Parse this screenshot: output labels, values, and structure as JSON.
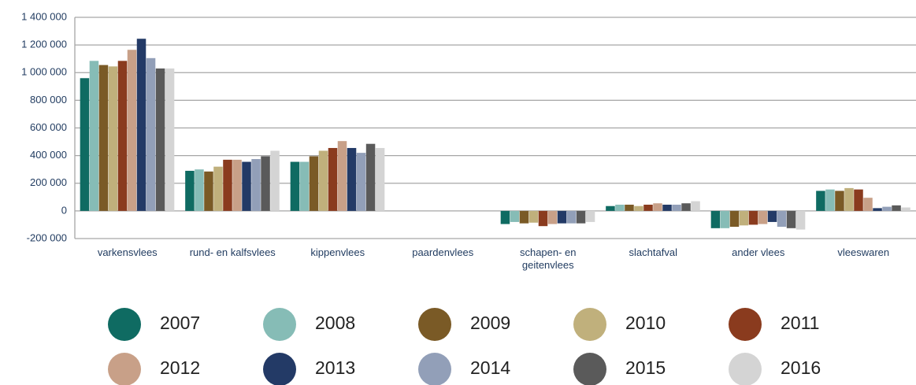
{
  "chart_data": {
    "type": "bar",
    "categories": [
      "varkensvlees",
      "rund- en kalfsvlees",
      "kippenvlees",
      "paardenvlees",
      "schapen- en geitenvlees",
      "slachtafval",
      "ander vlees",
      "vleeswaren"
    ],
    "series": [
      {
        "name": "2007",
        "color": "#0f6b62",
        "values": [
          960000,
          290000,
          355000,
          0,
          -95000,
          35000,
          -125000,
          145000
        ]
      },
      {
        "name": "2008",
        "color": "#86bcb6",
        "values": [
          1085000,
          300000,
          355000,
          0,
          -80000,
          45000,
          -125000,
          155000
        ]
      },
      {
        "name": "2009",
        "color": "#7a5a26",
        "values": [
          1055000,
          285000,
          395000,
          0,
          -90000,
          45000,
          -115000,
          145000
        ]
      },
      {
        "name": "2010",
        "color": "#c0b07c",
        "values": [
          1045000,
          320000,
          435000,
          0,
          -85000,
          35000,
          -105000,
          165000
        ]
      },
      {
        "name": "2011",
        "color": "#8a3b1e",
        "values": [
          1085000,
          370000,
          455000,
          0,
          -110000,
          45000,
          -100000,
          155000
        ]
      },
      {
        "name": "2012",
        "color": "#c8a088",
        "values": [
          1165000,
          370000,
          505000,
          0,
          -95000,
          55000,
          -95000,
          95000
        ]
      },
      {
        "name": "2013",
        "color": "#233a66",
        "values": [
          1245000,
          355000,
          455000,
          0,
          -90000,
          45000,
          -80000,
          20000
        ]
      },
      {
        "name": "2014",
        "color": "#929fb8",
        "values": [
          1105000,
          375000,
          420000,
          0,
          -90000,
          45000,
          -115000,
          30000
        ]
      },
      {
        "name": "2015",
        "color": "#5a5a5a",
        "values": [
          1030000,
          395000,
          485000,
          0,
          -90000,
          55000,
          -125000,
          40000
        ]
      },
      {
        "name": "2016",
        "color": "#d4d4d4",
        "values": [
          1030000,
          435000,
          455000,
          0,
          -80000,
          70000,
          -135000,
          25000
        ]
      }
    ],
    "ylim": [
      -200000,
      1400000
    ],
    "yticks": [
      {
        "value": -200000,
        "label": "-200 000"
      },
      0,
      {
        "value": 200000,
        "label": "200 000"
      },
      {
        "value": 400000,
        "label": "400 000"
      },
      {
        "value": 600000,
        "label": "600 000"
      },
      {
        "value": 800000,
        "label": "800 000"
      },
      {
        "value": 1000000,
        "label": "1 000 000"
      },
      {
        "value": 1200000,
        "label": "1 200 000"
      },
      {
        "value": 1400000,
        "label": "1 400 000"
      }
    ],
    "grid": true,
    "legend": "bottom"
  }
}
